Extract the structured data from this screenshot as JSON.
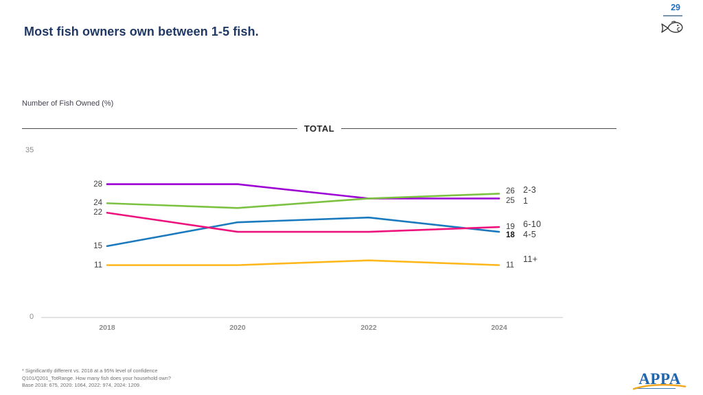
{
  "page": {
    "number": "29"
  },
  "header": {
    "title": "Most fish owners own between 1-5 fish.",
    "fish_icon": "fish-doodle-icon"
  },
  "chart_data": {
    "type": "line",
    "title": "Number of Fish Owned (%)",
    "group_header": "TOTAL",
    "x": [
      "2018",
      "2020",
      "2022",
      "2024"
    ],
    "ylim": [
      0,
      35
    ],
    "y_axis_labels": {
      "top": "35",
      "bottom": "0"
    },
    "grid": false,
    "legend_position": "right-of-line-ends",
    "series": [
      {
        "name": "1",
        "color": "#9c00d3",
        "values": [
          28,
          28,
          25,
          25
        ],
        "start_label": "28",
        "end_label": "25",
        "end_bold": false,
        "end_dy": 4,
        "name_dy": 0
      },
      {
        "name": "2-3",
        "color": "#7cc242",
        "values": [
          24,
          23,
          25,
          26
        ],
        "start_label": "24",
        "end_label": "26",
        "end_bold": false,
        "end_dy": -3,
        "name_dy": -2
      },
      {
        "name": "4-5",
        "color": "#1b79be",
        "values": [
          15,
          20,
          21,
          18
        ],
        "start_label": "15",
        "end_label": "18",
        "end_bold": true,
        "end_dy": 5,
        "name_dy": -1
      },
      {
        "name": "6-10",
        "color": "#ee127d",
        "values": [
          22,
          18,
          18,
          19
        ],
        "start_label": "22",
        "end_label": "19",
        "end_bold": false,
        "end_dy": 0,
        "name_dy": -4
      },
      {
        "name": "11+",
        "color": "#ffb71c",
        "values": [
          11,
          11,
          12,
          11
        ],
        "start_label": "11",
        "end_label": "11",
        "end_bold": false,
        "end_dy": 0,
        "name_dy": -9
      }
    ]
  },
  "footnotes": [
    "* Significantly different vs. 2018 at a 95% level of confidence",
    "Q101/Q201_TotRange. How many fish does your household own?",
    "Base 2018: 675, 2020: 1064, 2022: 974, 2024: 1209."
  ],
  "logo": {
    "text": "APPA"
  },
  "colors": {
    "accent_blue": "#1e6fc0",
    "title_navy": "#1f3864",
    "axis_line": "#d9d9d9",
    "divider": "#4a4a4a",
    "logo_blue": "#2166ad",
    "swoosh_gold": "#f3a823"
  }
}
